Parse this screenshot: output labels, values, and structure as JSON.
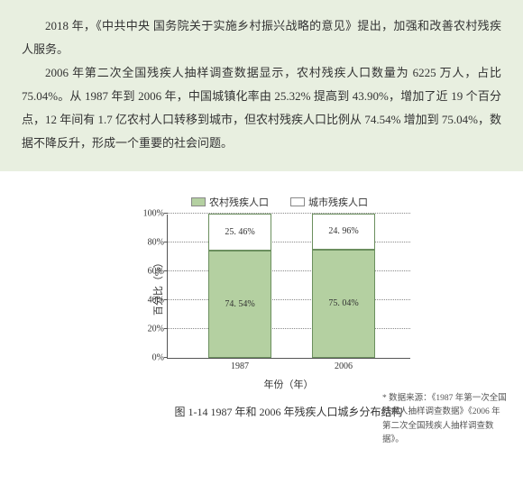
{
  "textblock": {
    "para1": "2018 年，《中共中央 国务院关于实施乡村振兴战略的意见》提出，加强和改善农村残疾人服务。",
    "para2": "2006 年第二次全国残疾人抽样调查数据显示，农村残疾人口数量为 6225 万人，占比 75.04%。从 1987 年到 2006 年，中国城镇化率由 25.32% 提高到 43.90%，增加了近 19 个百分点，12 年间有 1.7 亿农村人口转移到城市，但农村残疾人口比例从 74.54% 增加到 75.04%，数据不降反升，形成一个重要的社会问题。"
  },
  "chart": {
    "type": "stacked-bar",
    "legend": [
      {
        "label": "农村残疾人口",
        "color": "#b4d0a1"
      },
      {
        "label": "城市残疾人口",
        "color": "#ffffff"
      }
    ],
    "y_label": "百分比（%）",
    "x_label": "年份（年）",
    "ylim": [
      0,
      100
    ],
    "y_ticks": [
      0,
      20,
      40,
      60,
      80,
      100
    ],
    "y_tick_suffix": "%",
    "grid_color": "#8a8a8a",
    "bar_border": "#6b8f5e",
    "bars": [
      {
        "x_label": "1987",
        "left": 45,
        "segments": [
          {
            "value": 74.54,
            "label": "74. 54%",
            "color": "#b4d0a1"
          },
          {
            "value": 25.46,
            "label": "25. 46%",
            "color": "#ffffff"
          }
        ]
      },
      {
        "x_label": "2006",
        "left": 160,
        "segments": [
          {
            "value": 75.04,
            "label": "75. 04%",
            "color": "#b4d0a1"
          },
          {
            "value": 24.96,
            "label": "24. 96%",
            "color": "#ffffff"
          }
        ]
      }
    ]
  },
  "caption": "图 1-14 1987 年和 2006 年残疾人口城乡分布结构",
  "source": "* 数据来源：《1987 年第一次全国残疾人抽样调查数据》《2006 年第二次全国残疾人抽样调查数据》。"
}
